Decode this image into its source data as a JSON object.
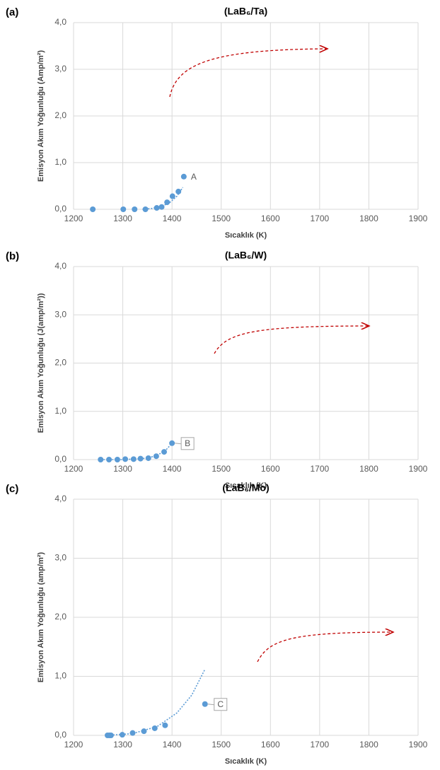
{
  "chart_data": [
    {
      "type": "scatter",
      "panel": "(a)",
      "title": "(LaB₆/Ta)",
      "xlabel": "Sıcaklık (K)",
      "ylabel": "Emisyon Akım Yoğunluğu (Amp/m²)",
      "xlim": [
        1200,
        1900
      ],
      "xticks": [
        1200,
        1300,
        1400,
        1500,
        1600,
        1700,
        1800,
        1900
      ],
      "ylim": [
        0,
        4
      ],
      "yticks": [
        {
          "value": 0,
          "label": "0,0"
        },
        {
          "value": 1,
          "label": "1,0"
        },
        {
          "value": 2,
          "label": "2,0"
        },
        {
          "value": 3,
          "label": "3,0"
        },
        {
          "value": 4,
          "label": "4,0"
        }
      ],
      "grid": true,
      "series": [
        {
          "color": "#5b9bd5",
          "x": [
            1239,
            1301,
            1324,
            1346,
            1369,
            1379,
            1390,
            1401,
            1413,
            1424
          ],
          "values": [
            0,
            0,
            0,
            0,
            0.03,
            0.05,
            0.15,
            0.28,
            0.38,
            0.7
          ]
        }
      ],
      "trend": {
        "color": "#5b9bd5",
        "x": [
          1340,
          1360,
          1380,
          1395,
          1410,
          1422
        ],
        "values": [
          0,
          0.02,
          0.07,
          0.14,
          0.28,
          0.47
        ]
      },
      "annotations": [
        {
          "text": "A",
          "x": 1424,
          "y": 0.7,
          "boxed": false
        }
      ]
    },
    {
      "type": "scatter",
      "panel": "(b)",
      "title": "(LaB₆/W)",
      "xlabel": "Sıcaklık (K)",
      "ylabel": "Emisyon Akım Yoğunluğu (J(amp/m²))",
      "xlim": [
        1200,
        1900
      ],
      "xticks": [
        1200,
        1300,
        1400,
        1500,
        1600,
        1700,
        1800,
        1900
      ],
      "ylim": [
        0,
        4
      ],
      "yticks": [
        {
          "value": 0,
          "label": "0,0"
        },
        {
          "value": 1,
          "label": "1,0"
        },
        {
          "value": 2,
          "label": "2,0"
        },
        {
          "value": 3,
          "label": "3,0"
        },
        {
          "value": 4,
          "label": "4,0"
        }
      ],
      "grid": true,
      "series": [
        {
          "color": "#5b9bd5",
          "x": [
            1255,
            1272,
            1289,
            1305,
            1322,
            1336,
            1352,
            1368,
            1384,
            1400
          ],
          "values": [
            0,
            0,
            0,
            0.01,
            0.01,
            0.02,
            0.03,
            0.07,
            0.16,
            0.34
          ]
        }
      ],
      "trend": {
        "color": "#5b9bd5",
        "x": [
          1255,
          1300,
          1340,
          1365,
          1385,
          1402
        ],
        "values": [
          0,
          0,
          0.02,
          0.07,
          0.17,
          0.36
        ]
      },
      "annotations": [
        {
          "text": "B",
          "x": 1400,
          "y": 0.34,
          "boxed": true
        }
      ]
    },
    {
      "type": "scatter",
      "panel": "(c)",
      "title": "(LaB₆/Mo)",
      "xlabel": "Sıcaklık (K)",
      "ylabel": "Emisyon Akım Yoğunluğu (amp/m²)",
      "xlim": [
        1200,
        1900
      ],
      "xticks": [
        1200,
        1300,
        1400,
        1500,
        1600,
        1700,
        1800,
        1900
      ],
      "ylim": [
        0,
        4
      ],
      "yticks": [
        {
          "value": 0,
          "label": "0,0"
        },
        {
          "value": 1,
          "label": "1,0"
        },
        {
          "value": 2,
          "label": "2,0"
        },
        {
          "value": 3,
          "label": "3,0"
        },
        {
          "value": 4,
          "label": "4,0"
        }
      ],
      "grid": true,
      "series": [
        {
          "color": "#5b9bd5",
          "x": [
            1269,
            1273,
            1276,
            1299,
            1320,
            1343,
            1365,
            1386,
            1467
          ],
          "values": [
            0,
            0,
            0,
            0.01,
            0.04,
            0.07,
            0.12,
            0.17,
            0.53
          ]
        }
      ],
      "trend": {
        "color": "#5b9bd5",
        "x": [
          1269,
          1320,
          1370,
          1410,
          1440,
          1467
        ],
        "values": [
          0,
          0.03,
          0.15,
          0.38,
          0.68,
          1.12
        ]
      },
      "annotations": [
        {
          "text": "C",
          "x": 1467,
          "y": 0.53,
          "boxed": true
        }
      ]
    }
  ]
}
